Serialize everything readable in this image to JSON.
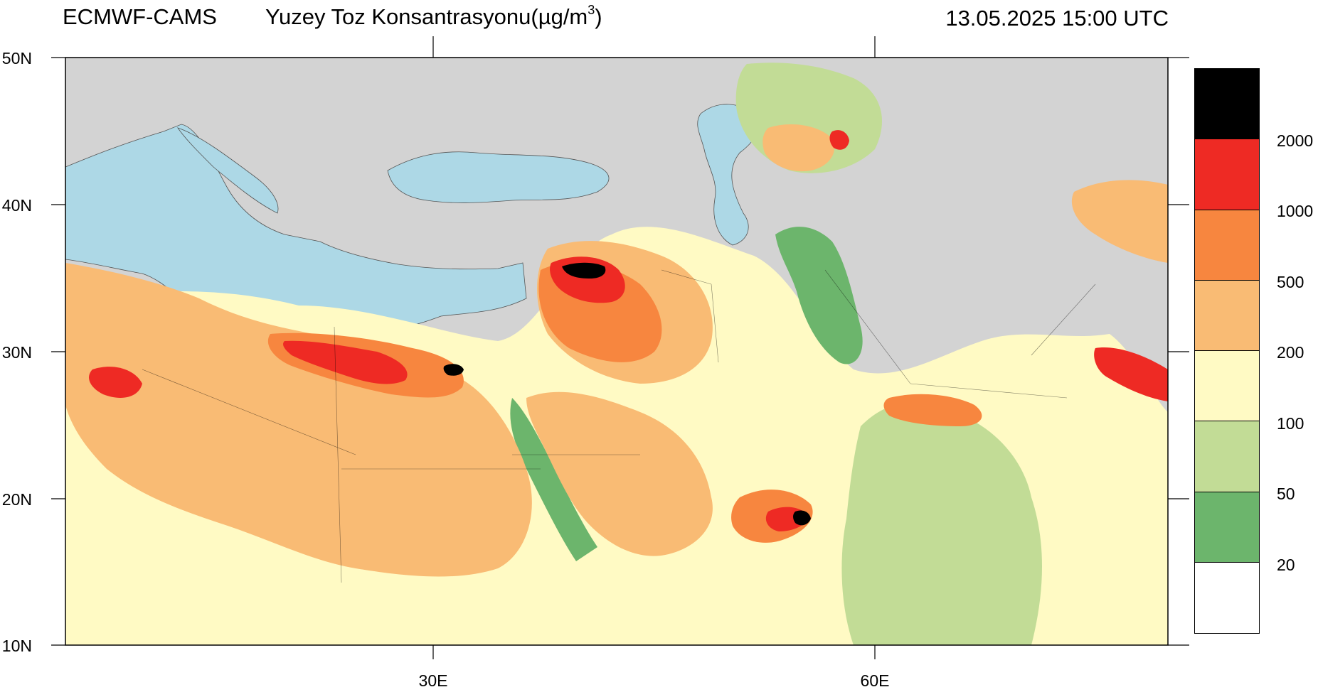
{
  "header": {
    "source": "ECMWF-CAMS",
    "variable_prefix": "Yuzey Toz Konsantrasyonu(µg/m",
    "variable_sup": "3",
    "variable_suffix": ")",
    "valid_time": "13.05.2025 15:00 UTC"
  },
  "map": {
    "lon_range": [
      5,
      80
    ],
    "lat_range": [
      10,
      50
    ],
    "lat_labels": [
      "50N",
      "40N",
      "30N",
      "20N",
      "10N"
    ],
    "lon_labels": [
      "30E",
      "60E"
    ],
    "land_color": "#d3d3d3",
    "water_color": "#add8e6"
  },
  "legend": {
    "levels": [
      "2000",
      "1000",
      "500",
      "200",
      "100",
      "50",
      "20"
    ],
    "colors": [
      "#000000",
      "#ee2a24",
      "#f7863f",
      "#f9bb74",
      "#fffac4",
      "#c2dc96",
      "#6cb56c",
      "#ffffff"
    ]
  }
}
